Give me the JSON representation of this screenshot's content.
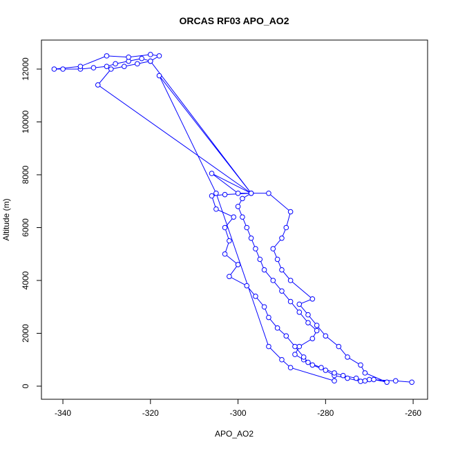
{
  "chart_data": {
    "type": "line",
    "title": "ORCAS RF03 APO_AO2",
    "xlabel": "APO_AO2",
    "ylabel": "Altitude (m)",
    "color": "#0000ff",
    "markers": true,
    "xlim": [
      -344.9,
      -256.7
    ],
    "ylim": [
      -497,
      13098
    ],
    "xticks": [
      -340,
      -320,
      -300,
      -280,
      -260
    ],
    "yticks": [
      0,
      2000,
      4000,
      6000,
      8000,
      10000,
      12000
    ],
    "x": [
      -260.3,
      -264,
      -270,
      -272,
      -275,
      -278,
      -280,
      -283,
      -285,
      -287,
      -286,
      -283,
      -282,
      -284,
      -286,
      -288,
      -290,
      -292,
      -294,
      -295,
      -296,
      -297,
      -298,
      -299,
      -300,
      -299,
      -297,
      -320,
      -322,
      -325,
      -328,
      -330,
      -333,
      -336,
      -340,
      -342,
      -336,
      -330,
      -325,
      -320,
      -318,
      -320,
      -323,
      -326,
      -329,
      -332,
      -297,
      -303,
      -306,
      -305,
      -301,
      -303,
      -302,
      -303,
      -300,
      -302,
      -298,
      -296,
      -294,
      -293,
      -291,
      -289,
      -287,
      -285,
      -284,
      -281,
      -278,
      -276,
      -273,
      -271,
      -269,
      -266,
      -271,
      -272,
      -275,
      -277,
      -280,
      -282,
      -284,
      -286,
      -283,
      -288,
      -290,
      -291,
      -292,
      -290,
      -289,
      -288,
      -293,
      -300,
      -306,
      -297,
      -318,
      -305,
      -293,
      -290,
      -288,
      -278
    ],
    "values": [
      150,
      200,
      250,
      180,
      300,
      400,
      600,
      800,
      1000,
      1200,
      1500,
      1800,
      2100,
      2400,
      2800,
      3200,
      3600,
      4000,
      4400,
      4800,
      5200,
      5600,
      6000,
      6400,
      6800,
      7100,
      7300,
      12300,
      12400,
      12300,
      12200,
      12100,
      12050,
      12000,
      12000,
      12000,
      12100,
      12500,
      12450,
      12550,
      12500,
      12300,
      12200,
      12100,
      12000,
      11400,
      7300,
      7250,
      7200,
      6700,
      6400,
      6000,
      5500,
      5000,
      4600,
      4150,
      3800,
      3400,
      3000,
      2600,
      2200,
      1900,
      1500,
      1100,
      900,
      700,
      500,
      400,
      300,
      200,
      250,
      150,
      500,
      800,
      1100,
      1500,
      1900,
      2300,
      2700,
      3100,
      3300,
      4000,
      4400,
      4800,
      5200,
      5600,
      6000,
      6600,
      7300,
      7300,
      8050,
      7300,
      11750,
      7300,
      1500,
      1000,
      700,
      200
    ]
  }
}
